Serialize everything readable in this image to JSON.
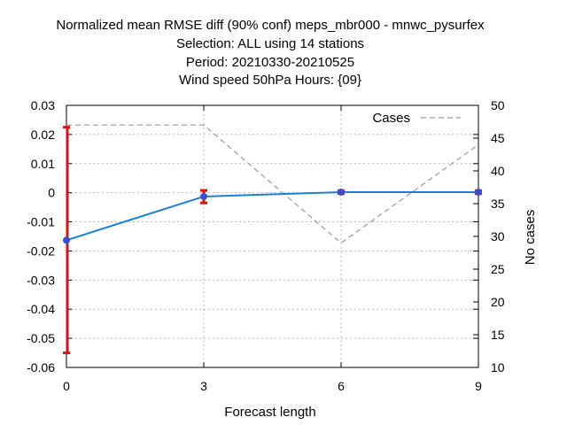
{
  "chart_data": {
    "type": "line",
    "title_lines": [
      "Normalized mean RMSE diff (90% conf) meps_mbr000 - mnwc_pysurfex",
      "Selection: ALL using    14 stations",
      "Period: 20210330-20210525",
      "Wind speed 50hPa   Hours: {09}"
    ],
    "xlabel": "Forecast length",
    "ylabel": "",
    "y2label": "No cases",
    "x_ticks": [
      0,
      3,
      6,
      9
    ],
    "y_ticks": [
      0.03,
      0.02,
      0.01,
      0,
      -0.01,
      -0.02,
      -0.03,
      -0.04,
      -0.05,
      -0.06
    ],
    "y_tick_labels": [
      "0.03",
      "0.02",
      "0.01",
      "0",
      "-0.01",
      "-0.02",
      "-0.03",
      "-0.04",
      "-0.05",
      "-0.06"
    ],
    "y2_ticks": [
      50,
      45,
      40,
      35,
      30,
      25,
      20,
      15,
      10
    ],
    "xlim": [
      0,
      9
    ],
    "ylim": [
      -0.06,
      0.03
    ],
    "y2lim": [
      10,
      50
    ],
    "grid": true,
    "legend_position": "top-right",
    "colors": {
      "diff": "#1a7fd8",
      "error": "#dd1111",
      "cases": "#999999",
      "grid": "#b8b8b8"
    },
    "series": [
      {
        "x": [
          0,
          3,
          6,
          9
        ],
        "values": [
          -0.0163,
          -0.0013,
          0.0002,
          0.0002
        ],
        "err_low": [
          -0.055,
          -0.0035,
          -0.0003,
          -0.0003
        ],
        "err_high": [
          0.0225,
          0.0008,
          0.0007,
          0.0007
        ],
        "axis": "y"
      },
      {
        "name": "Cases",
        "x": [
          0,
          3,
          6,
          9
        ],
        "values": [
          47,
          47,
          29,
          44
        ],
        "axis": "y2"
      }
    ]
  }
}
